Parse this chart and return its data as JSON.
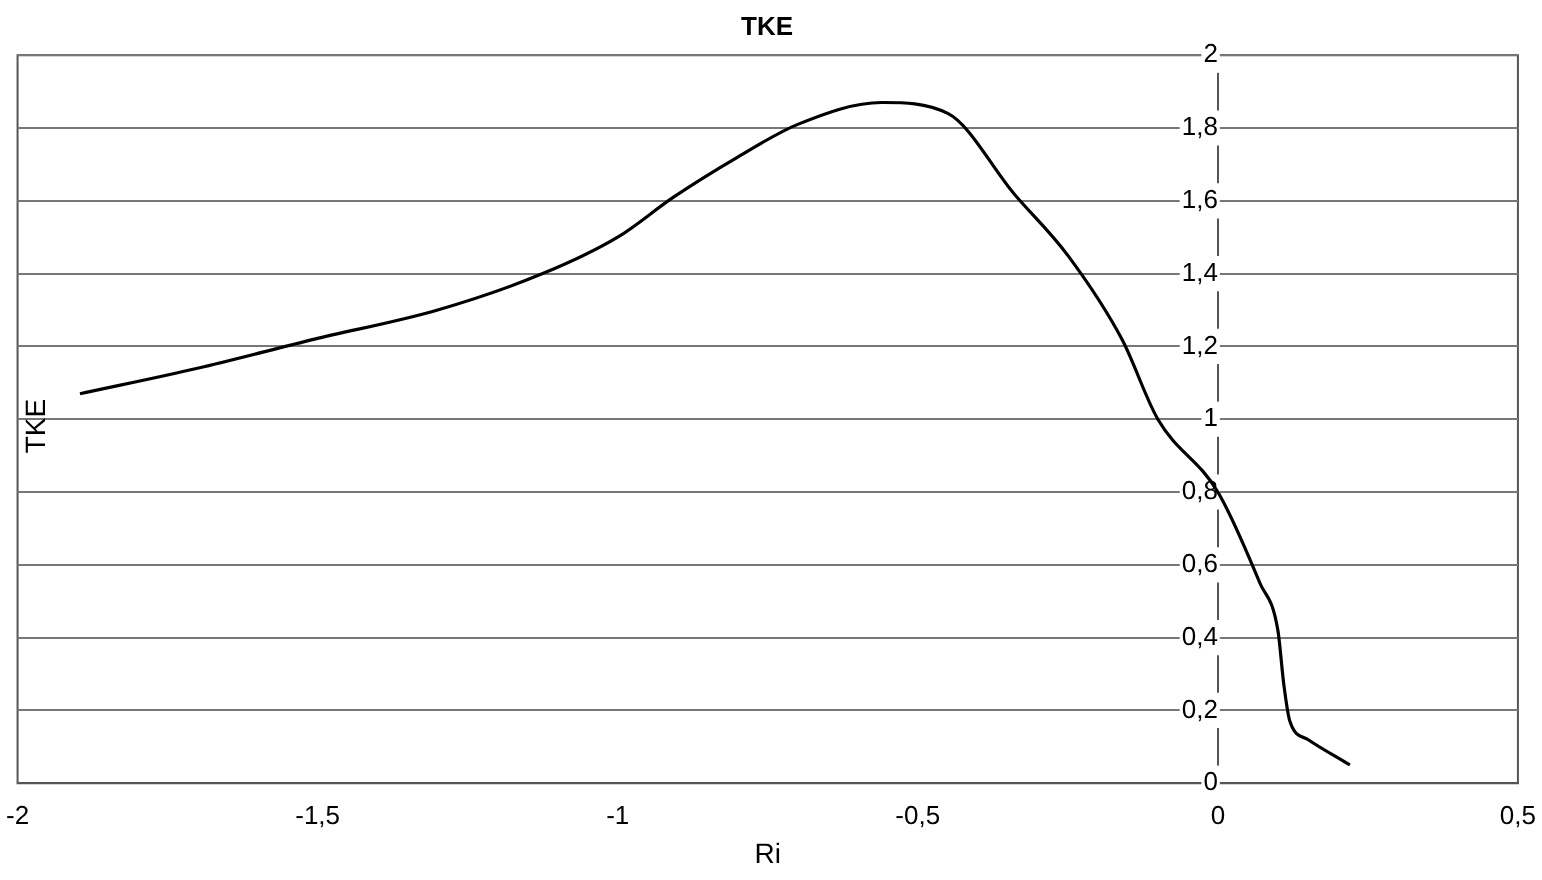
{
  "chart_data": {
    "type": "line",
    "title": "TKE",
    "xlabel": "Ri",
    "ylabel": "TKE",
    "series": [
      {
        "color": "#000000",
        "x": [
          -1.896,
          -1.7,
          -1.505,
          -1.3,
          -1.125,
          -1.0,
          -0.907,
          -0.8,
          -0.7,
          -0.56,
          -0.45,
          -0.34,
          -0.25,
          -0.16,
          -0.1,
          0,
          0.07,
          0.1,
          0.11,
          0.12,
          0.15,
          0.22
        ],
        "values": [
          1.07,
          1.14,
          1.22,
          1.3,
          1.4,
          1.5,
          1.61,
          1.72,
          1.81,
          1.87,
          1.84,
          1.62,
          1.45,
          1.22,
          1.0,
          0.8,
          0.55,
          0.42,
          0.27,
          0.17,
          0.12,
          0.05
        ]
      }
    ],
    "xlim": [
      -2,
      0.5
    ],
    "xticks": [
      {
        "value": -2,
        "label": "-2"
      },
      {
        "value": -1.5,
        "label": "-1,5"
      },
      {
        "value": -1,
        "label": "-1"
      },
      {
        "value": -0.5,
        "label": "-0,5"
      },
      {
        "value": 0,
        "label": "0"
      },
      {
        "value": 0.5,
        "label": "0,5"
      }
    ],
    "ylim": [
      0,
      2
    ],
    "yticks": [
      0,
      {
        "value": 0.2,
        "label": "0,2"
      },
      {
        "value": 0.4,
        "label": "0,4"
      },
      {
        "value": 0.6,
        "label": "0,6"
      },
      {
        "value": 0.8,
        "label": "0,8"
      },
      1,
      {
        "value": 1.2,
        "label": "1,2"
      },
      {
        "value": 1.4,
        "label": "1,4"
      },
      {
        "value": 1.6,
        "label": "1,6"
      },
      {
        "value": 1.8,
        "label": "1,8"
      },
      2
    ],
    "grid": "y",
    "legend": false,
    "marker": "none",
    "line_style": "solid"
  }
}
